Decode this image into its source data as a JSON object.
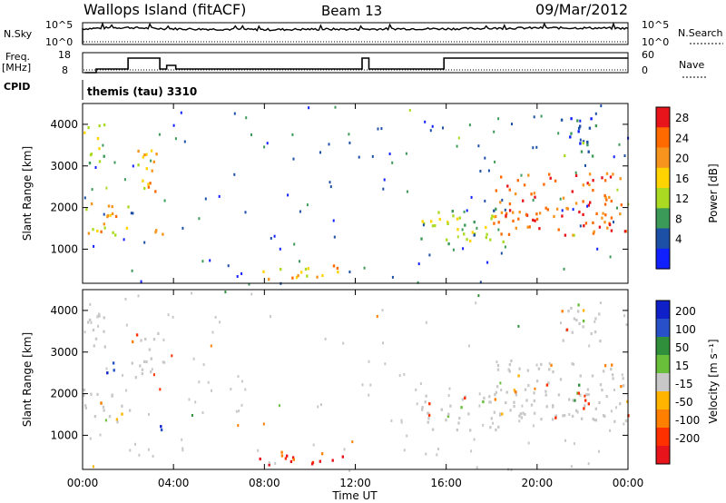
{
  "header": {
    "station": "Wallops Island (fitACF)",
    "beam": "Beam 13",
    "date": "09/Mar/2012"
  },
  "side_labels": {
    "nsky": "N.Sky",
    "nsearch": "N.Search",
    "freq": "Freq.",
    "freq_unit": "[MHz]",
    "nave": "Nave",
    "cpid": "CPID",
    "cpid_value": "themis (tau) 3310",
    "pow10_5": "10^5",
    "pow10_0": "10^0",
    "freq_ticks": [
      "18",
      "8"
    ],
    "nave_ticks": [
      "60",
      "0"
    ]
  },
  "colors": {
    "frame": "#000000",
    "na_gray": "#c8c8c8"
  },
  "chart_data": [
    {
      "type": "line",
      "panel": "noise",
      "xlabel": "",
      "ylabel": "",
      "ylim": [
        0,
        5
      ],
      "series": [
        {
          "name": "N.Sky",
          "x_hours": [
            0,
            1,
            2,
            3,
            4,
            6,
            8,
            10,
            12,
            14,
            16,
            18,
            20,
            22,
            24
          ],
          "log_values": [
            3.6,
            3.8,
            3.9,
            3.7,
            3.6,
            3.5,
            3.4,
            3.5,
            3.5,
            3.6,
            3.6,
            3.7,
            3.8,
            3.8,
            3.7
          ]
        },
        {
          "name": "N.Search",
          "x_hours": [
            0,
            24
          ],
          "log_values": [
            0.1,
            0.1
          ]
        }
      ]
    },
    {
      "type": "line",
      "panel": "frequency",
      "ylim_freq": [
        8,
        18
      ],
      "ylim_nave": [
        0,
        60
      ],
      "series": [
        {
          "name": "Freq.",
          "x_hours": [
            0.1,
            0.6,
            0.6,
            2.0,
            2.0,
            3.4,
            3.4,
            3.7,
            3.7,
            4.1,
            4.1,
            12.3,
            12.3,
            12.6,
            12.6,
            15.9,
            15.9,
            24
          ],
          "values": [
            8,
            8,
            10,
            10,
            16,
            16,
            10,
            10,
            12,
            12,
            10,
            10,
            16,
            16,
            10,
            10,
            16,
            16
          ]
        },
        {
          "name": "Nave",
          "x_hours": [
            0,
            24
          ],
          "values": [
            0,
            0
          ]
        }
      ]
    },
    {
      "type": "heatmap",
      "panel": "power",
      "xlabel": "",
      "ylabel": "Slant Range [km]",
      "xlim_hours": [
        0,
        24
      ],
      "ylim_km": [
        180,
        4500
      ],
      "yticks": [
        1000,
        2000,
        3000,
        4000
      ],
      "colorbar": {
        "label": "Power [dB]",
        "ticks": [
          "28",
          "24",
          "20",
          "16",
          "12",
          "8",
          "4"
        ],
        "colors": [
          "#e8141c",
          "#ff6a00",
          "#f7941d",
          "#ffd400",
          "#aadb22",
          "#3c9a58",
          "#1c4fa6",
          "#1020ff"
        ]
      },
      "echo_regions": [
        {
          "t": [
            0.0,
            2.1
          ],
          "r": [
            1350,
            2150
          ],
          "level": 3
        },
        {
          "t": [
            0.0,
            1.0
          ],
          "r": [
            3100,
            4100
          ],
          "level": 2
        },
        {
          "t": [
            2.1,
            3.3
          ],
          "r": [
            2400,
            3600
          ],
          "level": 3
        },
        {
          "t": [
            3.1,
            3.5
          ],
          "r": [
            900,
            1500
          ],
          "level": 3
        },
        {
          "t": [
            7.6,
            11.5
          ],
          "r": [
            300,
            650
          ],
          "level": 3
        },
        {
          "t": [
            14.8,
            18.5
          ],
          "r": [
            1150,
            2000
          ],
          "level": 2
        },
        {
          "t": [
            18.0,
            24.0
          ],
          "r": [
            1350,
            2850
          ],
          "level": 4
        },
        {
          "t": [
            21.0,
            22.8
          ],
          "r": [
            3200,
            4200
          ],
          "level": 1
        }
      ]
    },
    {
      "type": "heatmap",
      "panel": "velocity",
      "xlabel": "Time UT",
      "ylabel": "Slant Range [km]",
      "xlim_hours": [
        0,
        24
      ],
      "ylim_km": [
        180,
        4500
      ],
      "xticks": [
        "00:00",
        "04:00",
        "08:00",
        "12:00",
        "16:00",
        "20:00",
        "00:00"
      ],
      "yticks": [
        1000,
        2000,
        3000,
        4000
      ],
      "colorbar": {
        "label": "Velocity [m s⁻¹]",
        "ticks": [
          "200",
          "100",
          "50",
          "15",
          "-15",
          "-50",
          "-100",
          "-200"
        ],
        "colors": [
          "#1020c8",
          "#2850c8",
          "#2f8f3b",
          "#6abf3a",
          "#c8c8c8",
          "#ffb400",
          "#ff7f00",
          "#ff3000",
          "#e8141c"
        ]
      },
      "echo_regions": [
        {
          "t": [
            0.0,
            2.1
          ],
          "r": [
            1350,
            2150
          ],
          "kind": "gray"
        },
        {
          "t": [
            0.0,
            1.0
          ],
          "r": [
            3100,
            4100
          ],
          "kind": "gray"
        },
        {
          "t": [
            2.1,
            3.3
          ],
          "r": [
            2400,
            3600
          ],
          "kind": "gray"
        },
        {
          "t": [
            3.2,
            3.6
          ],
          "r": [
            950,
            1450
          ],
          "kind": "blue"
        },
        {
          "t": [
            1.0,
            1.6
          ],
          "r": [
            2500,
            2900
          ],
          "kind": "blue"
        },
        {
          "t": [
            7.6,
            11.5
          ],
          "r": [
            300,
            650
          ],
          "kind": "red"
        },
        {
          "t": [
            14.8,
            18.5
          ],
          "r": [
            1150,
            2000
          ],
          "kind": "gray"
        },
        {
          "t": [
            18.0,
            24.0
          ],
          "r": [
            1350,
            2850
          ],
          "kind": "gray"
        },
        {
          "t": [
            21.0,
            22.8
          ],
          "r": [
            3200,
            4200
          ],
          "kind": "gray"
        }
      ]
    }
  ]
}
